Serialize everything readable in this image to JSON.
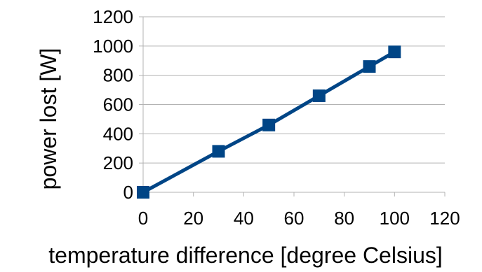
{
  "chart_data": {
    "type": "line",
    "title": "",
    "xlabel": "temperature difference [degree Celsius]",
    "ylabel": "power lost [W]",
    "xlim": [
      0,
      120
    ],
    "ylim": [
      0,
      1200
    ],
    "xticks": [
      0,
      20,
      40,
      60,
      80,
      100,
      120
    ],
    "yticks": [
      0,
      200,
      400,
      600,
      800,
      1000,
      1200
    ],
    "grid": "horizontal",
    "legend": "none",
    "series": [
      {
        "x": [
          0,
          30,
          50,
          70,
          90,
          100
        ],
        "values": [
          0,
          280,
          460,
          660,
          860,
          960
        ],
        "marker": "square",
        "color": "#004586"
      }
    ]
  },
  "colors": {
    "series": "#004586",
    "grid": "#b3b3b3",
    "axis": "#b3b3b3",
    "text": "#000000"
  }
}
